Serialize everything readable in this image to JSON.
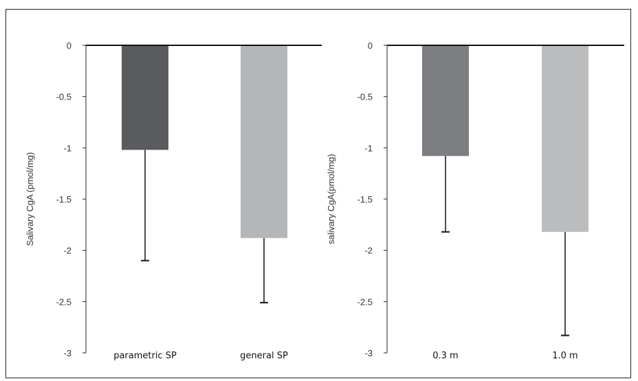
{
  "chart_data": [
    {
      "type": "bar",
      "categories": [
        "parametric SP",
        "general SP"
      ],
      "values": [
        -1.02,
        -1.88
      ],
      "errors": [
        1.08,
        0.63
      ],
      "colors": [
        "#5a5b5f",
        "#b5b6b8"
      ],
      "ylabel": "Salivary CgA (pmol/mg)",
      "ylim": [
        -3,
        0
      ],
      "yticks": [
        "0",
        "-0.5",
        "-1",
        "-1.5",
        "-2",
        "-2.5",
        "-3"
      ],
      "grid": false
    },
    {
      "type": "bar",
      "categories": [
        "0.3 m",
        "1.0 m"
      ],
      "values": [
        -1.08,
        -1.82
      ],
      "errors": [
        0.74,
        1.01
      ],
      "colors": [
        "#7d7e82",
        "#bbbcbe"
      ],
      "ylabel": "salivary CgA(pmol/mg)",
      "ylim": [
        -3,
        0
      ],
      "yticks": [
        "0",
        "-0.5",
        "-1",
        "-1.5",
        "-2",
        "-2.5",
        "-3"
      ],
      "grid": false
    }
  ]
}
